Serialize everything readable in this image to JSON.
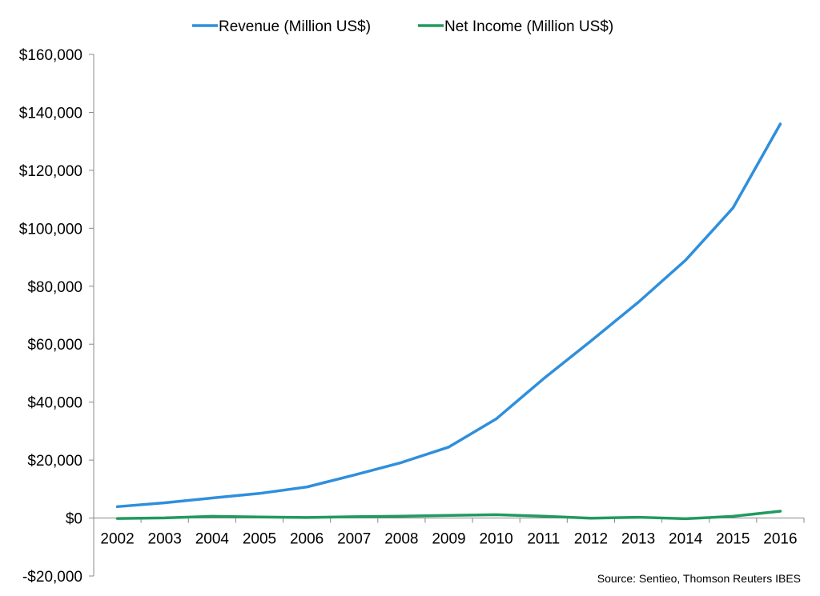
{
  "chart_data": {
    "type": "line",
    "categories": [
      "2002",
      "2003",
      "2004",
      "2005",
      "2006",
      "2007",
      "2008",
      "2009",
      "2010",
      "2011",
      "2012",
      "2013",
      "2014",
      "2015",
      "2016"
    ],
    "series": [
      {
        "name": "Revenue (Million US$)",
        "color": "#2f8fdc",
        "values": [
          3933,
          5264,
          6921,
          8490,
          10711,
          14835,
          19166,
          24509,
          34204,
          48077,
          61093,
          74452,
          88988,
          107006,
          135987
        ]
      },
      {
        "name": "Net Income (Million US$)",
        "color": "#219a5f",
        "values": [
          -149,
          35,
          588,
          359,
          190,
          476,
          645,
          902,
          1152,
          631,
          -39,
          274,
          -241,
          596,
          2371
        ]
      }
    ],
    "ylim": [
      -20000,
      160000
    ],
    "yticks": [
      -20000,
      0,
      20000,
      40000,
      60000,
      80000,
      100000,
      120000,
      140000,
      160000
    ],
    "ytick_labels": [
      "-$20,000",
      "$0",
      "$20,000",
      "$40,000",
      "$60,000",
      "$80,000",
      "$100,000",
      "$120,000",
      "$140,000",
      "$160,000"
    ],
    "grid": false,
    "legend_position": "top",
    "annotation": "Source: Sentieo, Thomson Reuters IBES"
  }
}
